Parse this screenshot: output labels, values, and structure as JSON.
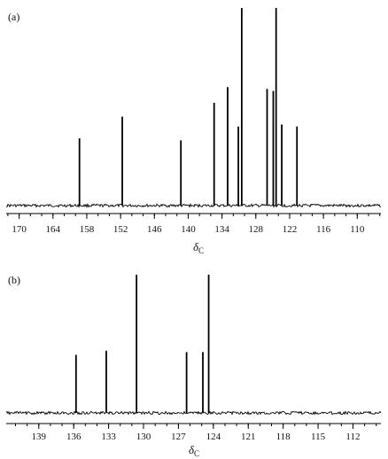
{
  "chart_data": [
    {
      "type": "line",
      "panel_label": "(a)",
      "xlabel": "δ",
      "xlabel_sub": "C",
      "x_reversed": true,
      "xlim": [
        172.3,
        105.8
      ],
      "ticks": [
        170,
        164,
        158,
        152,
        146,
        140,
        134,
        128,
        122,
        116,
        110
      ],
      "minor_tick_step": 2,
      "grid": false,
      "peaks_ppm": [
        159.3,
        151.7,
        141.3,
        135.4,
        133.0,
        131.1,
        130.5,
        126.0,
        124.9,
        124.4,
        123.4,
        120.7
      ],
      "peak_intensity": [
        0.34,
        0.45,
        0.33,
        0.52,
        0.6,
        0.4,
        1.0,
        0.59,
        0.58,
        1.0,
        0.41,
        0.4
      ]
    },
    {
      "type": "line",
      "panel_label": "(b)",
      "xlabel": "δ",
      "xlabel_sub": "C",
      "x_reversed": true,
      "xlim": [
        141.8,
        109.6
      ],
      "ticks": [
        139,
        136,
        133,
        130,
        127,
        124,
        121,
        118,
        115,
        112
      ],
      "minor_tick_step": 1,
      "grid": false,
      "peaks_ppm": [
        135.8,
        133.2,
        130.6,
        126.3,
        124.9,
        124.4
      ],
      "peak_intensity": [
        0.42,
        0.45,
        1.0,
        0.44,
        0.44,
        1.0
      ]
    }
  ]
}
